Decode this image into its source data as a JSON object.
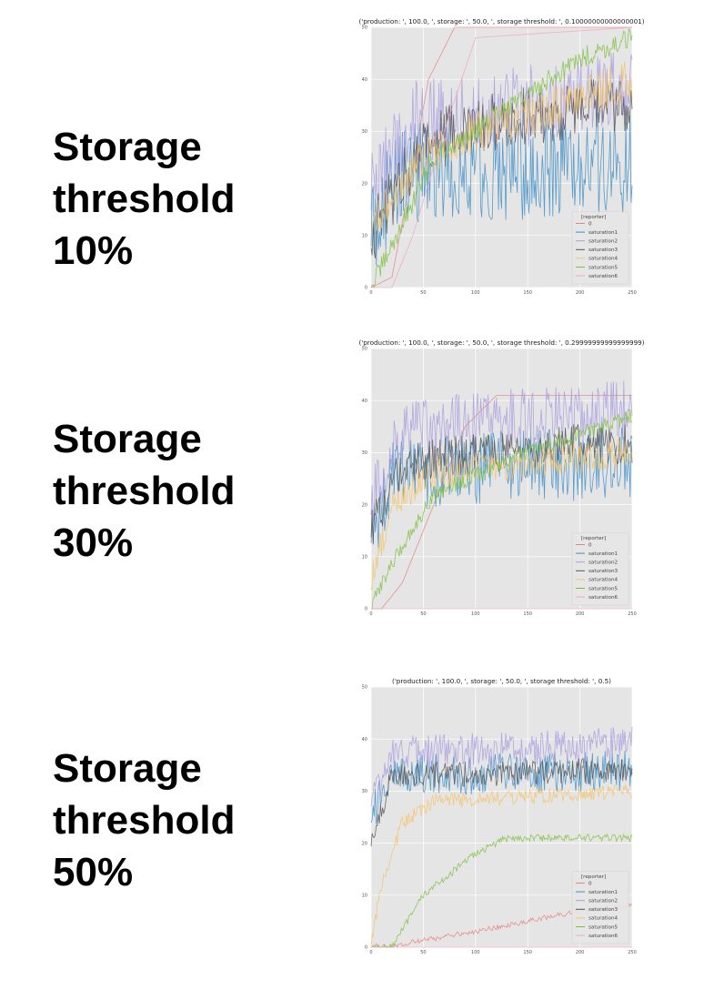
{
  "panels": [
    {
      "label_lines": [
        "Storage",
        "threshold",
        "10%"
      ]
    },
    {
      "label_lines": [
        "Storage",
        "threshold",
        "30%"
      ]
    },
    {
      "label_lines": [
        "Storage",
        "threshold",
        "50%"
      ]
    }
  ],
  "colors": {
    "plot_bg": "#e5e5e5",
    "grid": "#ffffff",
    "series": [
      "#e8817f",
      "#3f8fc8",
      "#a89ee0",
      "#555555",
      "#f4c46c",
      "#7fbf3f",
      "#f2a7b8"
    ]
  },
  "chart_data": [
    {
      "type": "line",
      "title": "('production: ', 100.0, ', storage: ', 50.0, ', storage threshold: ', 0.10000000000000001)",
      "xlim": [
        0,
        250
      ],
      "ylim": [
        0,
        50
      ],
      "xticks": [
        "0",
        "50",
        "100",
        "150",
        "200",
        "250"
      ],
      "yticks": [
        "0",
        "10",
        "20",
        "30",
        "40",
        "50"
      ],
      "grid": true,
      "legend_position": "lower-right",
      "legend_title": "[reporter]",
      "series": [
        {
          "name": "0",
          "base": [
            [
              0,
              0
            ],
            [
              20,
              2
            ],
            [
              35,
              18
            ],
            [
              55,
              40
            ],
            [
              80,
              50
            ],
            [
              250,
              50
            ]
          ],
          "amp": 0
        },
        {
          "name": "saturation1",
          "base": [
            [
              0,
              12
            ],
            [
              30,
              22
            ],
            [
              100,
              22
            ],
            [
              250,
              24
            ]
          ],
          "amp": 10
        },
        {
          "name": "saturation2",
          "base": [
            [
              0,
              18
            ],
            [
              40,
              32
            ],
            [
              150,
              35
            ],
            [
              250,
              38
            ]
          ],
          "amp": 8
        },
        {
          "name": "saturation3",
          "base": [
            [
              0,
              10
            ],
            [
              50,
              28
            ],
            [
              150,
              33
            ],
            [
              250,
              35
            ]
          ],
          "amp": 6
        },
        {
          "name": "saturation4",
          "base": [
            [
              0,
              12
            ],
            [
              50,
              25
            ],
            [
              100,
              30
            ],
            [
              250,
              40
            ]
          ],
          "amp": 4
        },
        {
          "name": "saturation5",
          "base": [
            [
              0,
              0
            ],
            [
              20,
              8
            ],
            [
              60,
              25
            ],
            [
              120,
              33
            ],
            [
              200,
              44
            ],
            [
              250,
              48
            ]
          ],
          "amp": 2
        },
        {
          "name": "saturation6",
          "base": [
            [
              0,
              0
            ],
            [
              20,
              0
            ],
            [
              40,
              10
            ],
            [
              70,
              30
            ],
            [
              100,
              48
            ],
            [
              250,
              50
            ]
          ],
          "amp": 0
        }
      ]
    },
    {
      "type": "line",
      "title": "('production: ', 100.0, ', storage: ', 50.0, ', storage threshold: ', 0.29999999999999999)",
      "xlim": [
        0,
        250
      ],
      "ylim": [
        0,
        50
      ],
      "xticks": [
        "0",
        "50",
        "100",
        "150",
        "200",
        "250"
      ],
      "yticks": [
        "0",
        "10",
        "20",
        "30",
        "40",
        "50"
      ],
      "grid": true,
      "legend_position": "lower-right",
      "legend_title": "[reporter]",
      "series": [
        {
          "name": "0",
          "base": [
            [
              0,
              0
            ],
            [
              10,
              0
            ],
            [
              30,
              5
            ],
            [
              60,
              20
            ],
            [
              90,
              35
            ],
            [
              120,
              41
            ],
            [
              250,
              41
            ]
          ],
          "amp": 0
        },
        {
          "name": "saturation1",
          "base": [
            [
              0,
              15
            ],
            [
              20,
              25
            ],
            [
              100,
              27
            ],
            [
              250,
              28
            ]
          ],
          "amp": 7
        },
        {
          "name": "saturation2",
          "base": [
            [
              0,
              20
            ],
            [
              30,
              34
            ],
            [
              150,
              37
            ],
            [
              250,
              38
            ]
          ],
          "amp": 6
        },
        {
          "name": "saturation3",
          "base": [
            [
              0,
              15
            ],
            [
              30,
              28
            ],
            [
              150,
              31
            ],
            [
              250,
              32
            ]
          ],
          "amp": 4
        },
        {
          "name": "saturation4",
          "base": [
            [
              0,
              5
            ],
            [
              20,
              20
            ],
            [
              60,
              26
            ],
            [
              250,
              30
            ]
          ],
          "amp": 3
        },
        {
          "name": "saturation5",
          "base": [
            [
              0,
              0
            ],
            [
              10,
              5
            ],
            [
              30,
              12
            ],
            [
              60,
              22
            ],
            [
              150,
              30
            ],
            [
              250,
              37
            ]
          ],
          "amp": 1.5
        },
        {
          "name": "saturation6",
          "base": [
            [
              0,
              0
            ],
            [
              40,
              0
            ],
            [
              250,
              0
            ]
          ],
          "amp": 0
        }
      ]
    },
    {
      "type": "line",
      "title": "('production: ', 100.0, ', storage: ', 50.0, ', storage threshold: ', 0.5)",
      "xlim": [
        0,
        250
      ],
      "ylim": [
        0,
        50
      ],
      "xticks": [
        "0",
        "50",
        "100",
        "150",
        "200",
        "250"
      ],
      "yticks": [
        "0",
        "10",
        "20",
        "30",
        "40",
        "50"
      ],
      "grid": true,
      "legend_position": "lower-right",
      "legend_title": "[reporter]",
      "series": [
        {
          "name": "0",
          "base": [
            [
              0,
              0
            ],
            [
              20,
              0
            ],
            [
              40,
              1
            ],
            [
              100,
              3
            ],
            [
              150,
              5
            ],
            [
              200,
              7
            ],
            [
              250,
              8
            ]
          ],
          "amp": 0.5
        },
        {
          "name": "saturation1",
          "base": [
            [
              0,
              25
            ],
            [
              20,
              33
            ],
            [
              250,
              34
            ]
          ],
          "amp": 4
        },
        {
          "name": "saturation2",
          "base": [
            [
              0,
              28
            ],
            [
              20,
              37
            ],
            [
              250,
              39
            ]
          ],
          "amp": 3.5
        },
        {
          "name": "saturation3",
          "base": [
            [
              0,
              20
            ],
            [
              20,
              33
            ],
            [
              250,
              34
            ]
          ],
          "amp": 2.5
        },
        {
          "name": "saturation4",
          "base": [
            [
              0,
              0
            ],
            [
              10,
              12
            ],
            [
              30,
              24
            ],
            [
              60,
              28
            ],
            [
              250,
              30
            ]
          ],
          "amp": 1.5
        },
        {
          "name": "saturation5",
          "base": [
            [
              0,
              0
            ],
            [
              20,
              0
            ],
            [
              50,
              10
            ],
            [
              100,
              18
            ],
            [
              130,
              21
            ],
            [
              250,
              21
            ]
          ],
          "amp": 0.7
        },
        {
          "name": "saturation6",
          "base": [
            [
              0,
              0
            ],
            [
              250,
              0
            ]
          ],
          "amp": 0
        }
      ]
    }
  ]
}
